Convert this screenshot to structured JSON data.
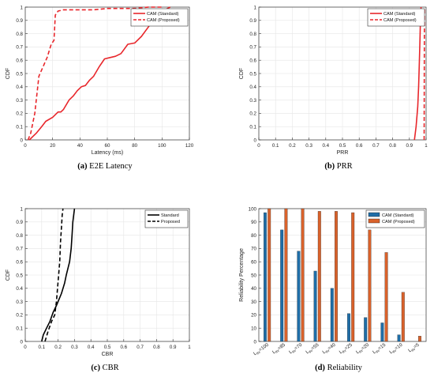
{
  "chart_data": [
    {
      "type": "line",
      "caption_label": "(a)",
      "caption_text": "E2E Latency",
      "xlabel": "Latency (ms)",
      "ylabel": "CDF",
      "xlim": [
        0,
        120
      ],
      "ylim": [
        0,
        1
      ],
      "xticks": [
        "0",
        "20",
        "40",
        "60",
        "80",
        "100",
        "120"
      ],
      "yticks": [
        "0",
        "0.1",
        "0.2",
        "0.3",
        "0.4",
        "0.5",
        "0.6",
        "0.7",
        "0.8",
        "0.9",
        "1"
      ],
      "legend_position": "top-right",
      "series": [
        {
          "name": "CAM (Standard)",
          "dash": "solid",
          "color": "#e8262b",
          "x": [
            3,
            8,
            12,
            15,
            20,
            24,
            26,
            28,
            32,
            35,
            38,
            41,
            44,
            47,
            50,
            54,
            58,
            62,
            66,
            70,
            75,
            80,
            85,
            90,
            95,
            100,
            104,
            106
          ],
          "y": [
            0,
            0.05,
            0.1,
            0.14,
            0.17,
            0.21,
            0.21,
            0.23,
            0.3,
            0.33,
            0.37,
            0.4,
            0.41,
            0.45,
            0.48,
            0.55,
            0.61,
            0.62,
            0.63,
            0.65,
            0.72,
            0.73,
            0.78,
            0.85,
            0.92,
            0.96,
            0.99,
            1
          ]
        },
        {
          "name": "CAM (Proposed)",
          "dash": "dashed",
          "color": "#e8262b",
          "x": [
            2,
            4,
            7,
            10,
            13,
            16,
            19,
            21,
            22,
            24,
            28,
            35,
            50,
            60,
            70,
            80,
            90,
            100
          ],
          "y": [
            0,
            0.05,
            0.2,
            0.48,
            0.55,
            0.62,
            0.72,
            0.75,
            0.94,
            0.97,
            0.98,
            0.98,
            0.98,
            0.99,
            0.99,
            0.99,
            1,
            1
          ]
        }
      ]
    },
    {
      "type": "line",
      "caption_label": "(b)",
      "caption_text": "PRR",
      "xlabel": "PRR",
      "ylabel": "CDF",
      "xlim": [
        0,
        1
      ],
      "ylim": [
        0,
        1
      ],
      "xticks": [
        "0",
        "0.1",
        "0.2",
        "0.3",
        "0.4",
        "0.5",
        "0.6",
        "0.7",
        "0.8",
        "0.9",
        "1"
      ],
      "yticks": [
        "0",
        "0.1",
        "0.2",
        "0.3",
        "0.4",
        "0.5",
        "0.6",
        "0.7",
        "0.8",
        "0.9",
        "1"
      ],
      "legend_position": "top-right",
      "series": [
        {
          "name": "CAM (Standard)",
          "dash": "solid",
          "color": "#e8262b",
          "x": [
            0.93,
            0.94,
            0.95,
            0.955,
            0.96,
            0.963,
            0.966,
            0.97
          ],
          "y": [
            0,
            0.1,
            0.25,
            0.4,
            0.6,
            0.75,
            0.9,
            1
          ]
        },
        {
          "name": "CAM (Proposed)",
          "dash": "dashed",
          "color": "#e8262b",
          "x": [
            0.988,
            0.989,
            0.99
          ],
          "y": [
            0,
            0.5,
            1
          ]
        }
      ]
    },
    {
      "type": "line",
      "caption_label": "(c)",
      "caption_text": "CBR",
      "xlabel": "CBR",
      "ylabel": "CDF",
      "xlim": [
        0,
        1
      ],
      "ylim": [
        0,
        1
      ],
      "xticks": [
        "0",
        "0.1",
        "0.2",
        "0.3",
        "0.4",
        "0.5",
        "0.6",
        "0.7",
        "0.8",
        "0.9",
        "1"
      ],
      "yticks": [
        "0",
        "0.1",
        "0.2",
        "0.3",
        "0.4",
        "0.5",
        "0.6",
        "0.7",
        "0.8",
        "0.9",
        "1"
      ],
      "legend_position": "top-right",
      "series": [
        {
          "name": "Standard",
          "dash": "solid",
          "color": "#000000",
          "x": [
            0.1,
            0.11,
            0.13,
            0.15,
            0.17,
            0.19,
            0.2,
            0.22,
            0.24,
            0.25,
            0.26,
            0.27,
            0.28,
            0.285,
            0.29,
            0.3
          ],
          "y": [
            0,
            0.05,
            0.1,
            0.15,
            0.22,
            0.27,
            0.3,
            0.36,
            0.44,
            0.5,
            0.55,
            0.6,
            0.7,
            0.8,
            0.9,
            1
          ]
        },
        {
          "name": "Proposed",
          "dash": "dashed",
          "color": "#000000",
          "x": [
            0.12,
            0.14,
            0.16,
            0.18,
            0.19,
            0.2,
            0.21,
            0.215,
            0.22,
            0.225,
            0.23
          ],
          "y": [
            0,
            0.08,
            0.15,
            0.2,
            0.3,
            0.45,
            0.6,
            0.75,
            0.85,
            0.95,
            1
          ]
        }
      ]
    },
    {
      "type": "bar",
      "caption_label": "(d)",
      "caption_text": "Reliability",
      "ylabel": "Reliability Percentage",
      "ylim": [
        0,
        100
      ],
      "yticks": [
        "0",
        "10",
        "20",
        "30",
        "40",
        "50",
        "60",
        "70",
        "80",
        "90",
        "100"
      ],
      "legend_position": "top-right",
      "categories": [
        {
          "main": "L",
          "sub": "thr",
          "rest": "=100"
        },
        {
          "main": "L",
          "sub": "thr",
          "rest": "=85"
        },
        {
          "main": "L",
          "sub": "thr",
          "rest": "=70"
        },
        {
          "main": "L",
          "sub": "thr",
          "rest": "=55"
        },
        {
          "main": "L",
          "sub": "thr",
          "rest": "=40"
        },
        {
          "main": "L",
          "sub": "thr",
          "rest": "=25"
        },
        {
          "main": "L",
          "sub": "thr",
          "rest": "=20"
        },
        {
          "main": "L",
          "sub": "thr",
          "rest": "=15"
        },
        {
          "main": "L",
          "sub": "thr",
          "rest": "=10"
        },
        {
          "main": "L",
          "sub": "thr",
          "rest": "=5"
        }
      ],
      "series": [
        {
          "name": "CAM (Standard)",
          "color": "#1f6ea8",
          "values": [
            97,
            84,
            68,
            53,
            40,
            21,
            18,
            14,
            5,
            0
          ]
        },
        {
          "name": "CAM (Proposed)",
          "color": "#d9622b",
          "values": [
            100,
            100,
            100,
            98,
            98,
            97,
            84,
            67,
            37,
            4
          ]
        }
      ]
    }
  ]
}
